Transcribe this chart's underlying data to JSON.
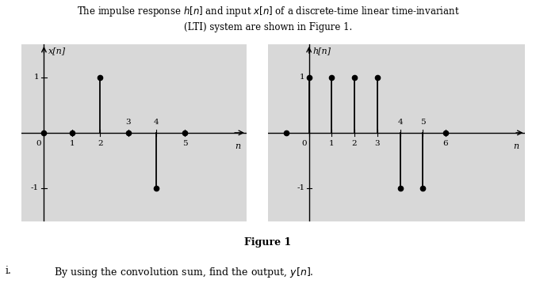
{
  "title_line1": "The impulse response h[n] and input x[n] of a discrete-time linear time-invariant",
  "title_line2": "(LTI) system are shown in Figure 1.",
  "fig_caption": "Figure 1",
  "question_i": "i.",
  "question_text": "By using the convolution sum, find the output, y[n].",
  "left_plot": {
    "ylabel": "x[n]",
    "xlabel": "n",
    "stems": [
      {
        "n": 2,
        "val": 1
      },
      {
        "n": 4,
        "val": -1
      }
    ],
    "dots_on_axis": [
      0,
      1,
      3,
      5
    ],
    "above_axis_labels": [
      {
        "n": 3,
        "label": "3"
      },
      {
        "n": 4,
        "label": "4"
      }
    ],
    "below_axis_labels": [
      {
        "n": 0,
        "label": "0"
      },
      {
        "n": 1,
        "label": "1"
      },
      {
        "n": 2,
        "label": "2"
      },
      {
        "n": 5,
        "label": "5"
      }
    ],
    "xlim": [
      -0.8,
      7.2
    ],
    "ylim": [
      -1.6,
      1.6
    ],
    "ytick_labels": [
      {
        "val": 1,
        "label": "1"
      },
      {
        "val": -1,
        "label": "-1"
      }
    ],
    "origin_x": 0
  },
  "right_plot": {
    "ylabel": "h[n]",
    "xlabel": "n",
    "stems": [
      {
        "n": 0,
        "val": 1
      },
      {
        "n": 1,
        "val": 1
      },
      {
        "n": 2,
        "val": 1
      },
      {
        "n": 3,
        "val": 1
      },
      {
        "n": 4,
        "val": -1
      },
      {
        "n": 5,
        "val": -1
      }
    ],
    "dots_on_axis": [
      -1,
      6
    ],
    "above_axis_labels": [
      {
        "n": 4,
        "label": "4"
      },
      {
        "n": 5,
        "label": "5"
      }
    ],
    "below_axis_labels": [
      {
        "n": 0,
        "label": "0"
      },
      {
        "n": 1,
        "label": "1"
      },
      {
        "n": 2,
        "label": "2"
      },
      {
        "n": 3,
        "label": "3"
      },
      {
        "n": 6,
        "label": "6"
      }
    ],
    "xlim": [
      -1.8,
      9.5
    ],
    "ylim": [
      -1.6,
      1.6
    ],
    "ytick_labels": [
      {
        "val": 1,
        "label": "1"
      },
      {
        "val": -1,
        "label": "-1"
      }
    ],
    "origin_x": 0
  },
  "bg_color": "#d8d8d8",
  "text_color": "black"
}
